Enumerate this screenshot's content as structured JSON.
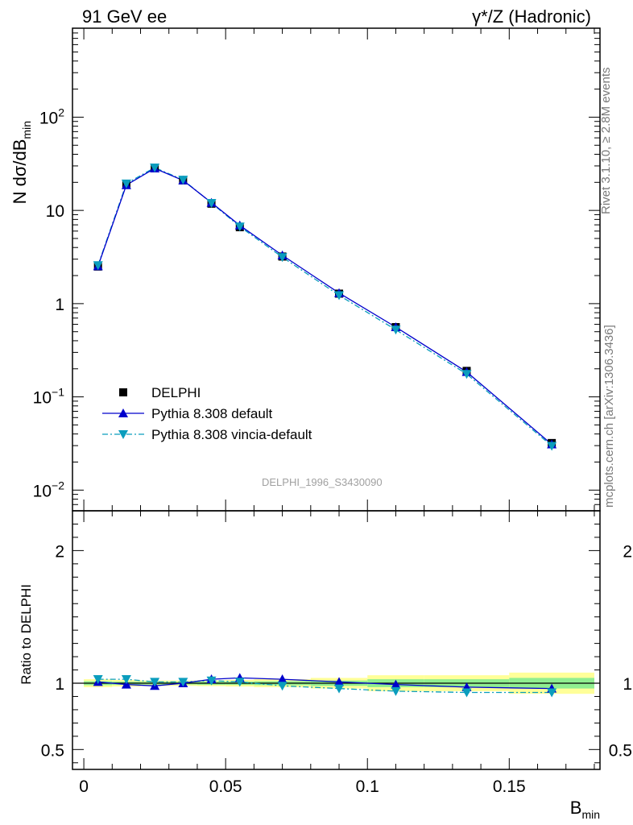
{
  "header": {
    "left": "91 GeV ee",
    "right": "γ*/Z (Hadronic)"
  },
  "side": {
    "rivet": "Rivet 3.1.10, ≥ 2.8M events",
    "mcplots": "mcplots.cern.ch [arXiv:1306.3436]"
  },
  "watermark": "DELPHI_1996_S3430090",
  "colors": {
    "data": "#000000",
    "pythia_default": "#0000cc",
    "pythia_vincia": "#0b9dbd",
    "band_inner": "#90ee90",
    "band_outer": "#ffff99"
  },
  "chart_data": [
    {
      "type": "scatter",
      "panel": "main",
      "ylabel": "N dσ/dB",
      "ylabel_sub": "min",
      "yscale": "log",
      "ylim": [
        0.006,
        900
      ],
      "xlim": [
        -0.004,
        0.182
      ],
      "y_ticks": [
        "10^-2",
        "10^-1",
        "1",
        "10",
        "10^2"
      ],
      "legend_position": "lower-left",
      "x": [
        0.005,
        0.015,
        0.025,
        0.035,
        0.045,
        0.055,
        0.07,
        0.09,
        0.11,
        0.135,
        0.165
      ],
      "series": [
        {
          "name": "DELPHI",
          "marker": "square",
          "values": [
            2.5,
            18.9,
            28.6,
            21.0,
            11.8,
            6.6,
            3.2,
            1.28,
            0.56,
            0.19,
            0.032
          ]
        },
        {
          "name": "Pythia 8.308 default",
          "marker": "triangle-up",
          "line": "solid",
          "values": [
            2.52,
            18.7,
            28.2,
            21.0,
            12.1,
            6.9,
            3.3,
            1.3,
            0.56,
            0.185,
            0.031
          ]
        },
        {
          "name": "Pythia 8.308 vincia-default",
          "marker": "triangle-down",
          "line": "dashdot",
          "values": [
            2.58,
            19.4,
            28.8,
            21.3,
            12.0,
            6.7,
            3.15,
            1.23,
            0.525,
            0.176,
            0.0298
          ]
        }
      ]
    },
    {
      "type": "line",
      "panel": "ratio",
      "xlabel": "B",
      "xlabel_sub": "min",
      "ylabel": "Ratio to DELPHI",
      "xlim": [
        -0.004,
        0.182
      ],
      "ylim": [
        0.35,
        2.3
      ],
      "x_ticks": [
        "0",
        "0.05",
        "0.1",
        "0.15"
      ],
      "y_ticks": [
        "0.5",
        "1",
        "2"
      ],
      "reference": 1,
      "bands": {
        "bin_edges": [
          0.0,
          0.01,
          0.02,
          0.03,
          0.04,
          0.05,
          0.06,
          0.08,
          0.1,
          0.12,
          0.15,
          0.18
        ],
        "inner": [
          0.015,
          0.012,
          0.01,
          0.01,
          0.012,
          0.012,
          0.015,
          0.02,
          0.03,
          0.03,
          0.04
        ],
        "outer": [
          0.03,
          0.025,
          0.02,
          0.02,
          0.022,
          0.025,
          0.03,
          0.04,
          0.06,
          0.06,
          0.08
        ]
      },
      "x": [
        0.005,
        0.015,
        0.025,
        0.035,
        0.045,
        0.055,
        0.07,
        0.09,
        0.11,
        0.135,
        0.165
      ],
      "series": [
        {
          "name": "Pythia 8.308 default",
          "values": [
            1.01,
            0.99,
            0.98,
            1.0,
            1.03,
            1.04,
            1.03,
            1.01,
            0.99,
            0.97,
            0.96
          ]
        },
        {
          "name": "Pythia 8.308 vincia-default",
          "values": [
            1.03,
            1.03,
            1.01,
            1.01,
            1.02,
            1.01,
            0.98,
            0.96,
            0.94,
            0.93,
            0.93
          ]
        }
      ]
    }
  ]
}
